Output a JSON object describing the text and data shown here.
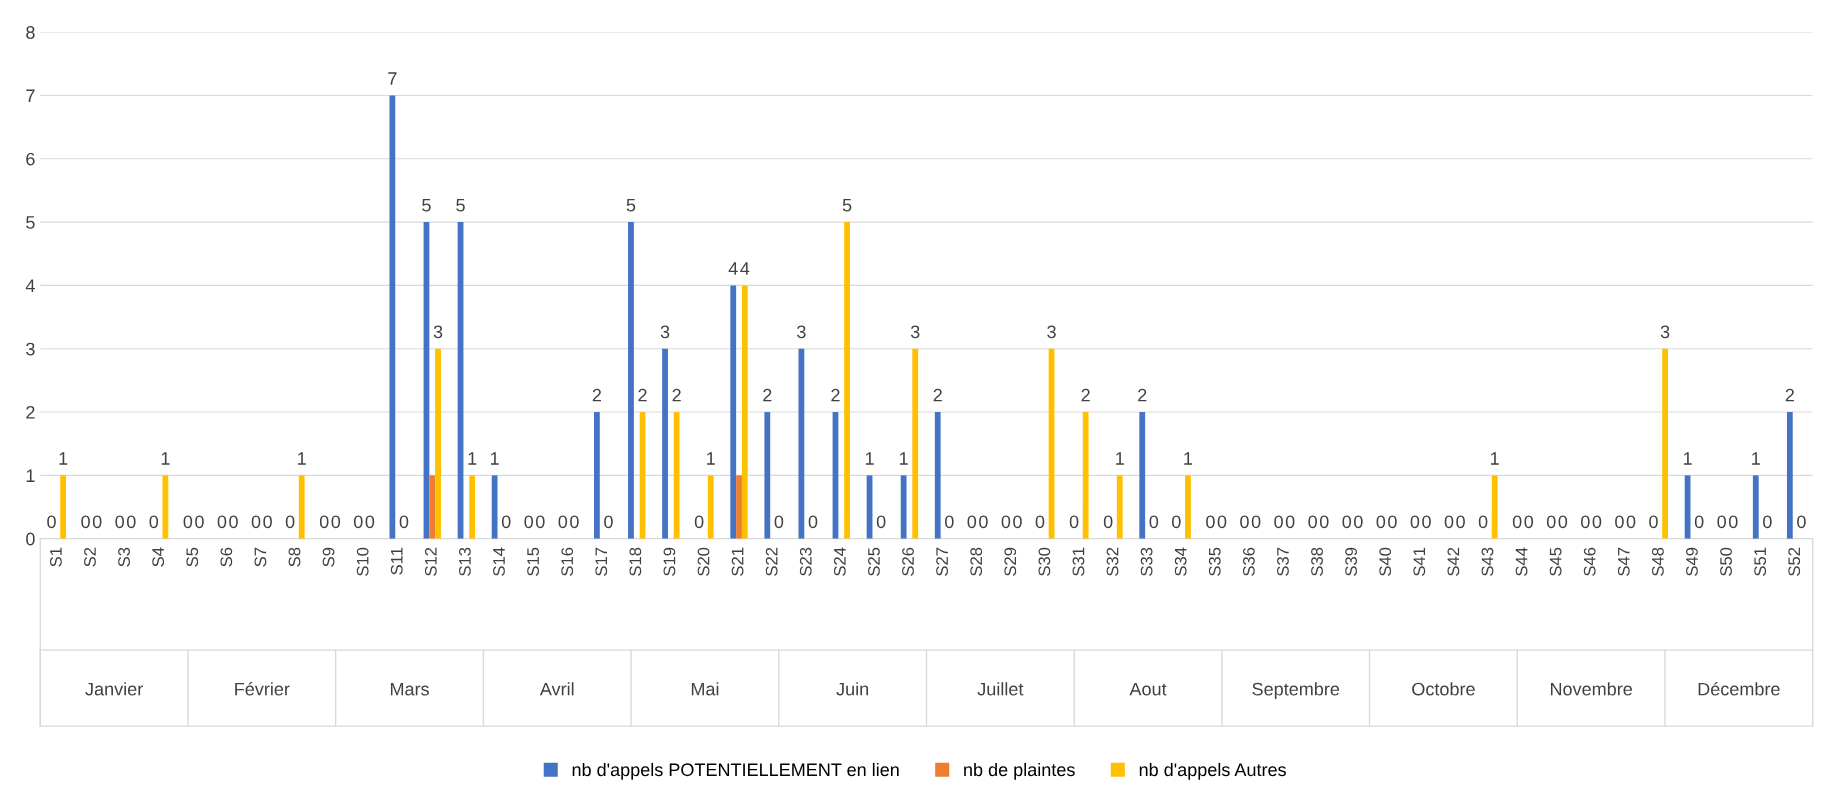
{
  "chart_data": {
    "type": "bar",
    "categories": [
      "S1",
      "S2",
      "S3",
      "S4",
      "S5",
      "S6",
      "S7",
      "S8",
      "S9",
      "S10",
      "S11",
      "S12",
      "S13",
      "S14",
      "S15",
      "S16",
      "S17",
      "S18",
      "S19",
      "S20",
      "S21",
      "S22",
      "S23",
      "S24",
      "S25",
      "S26",
      "S27",
      "S28",
      "S29",
      "S30",
      "S31",
      "S32",
      "S33",
      "S34",
      "S35",
      "S36",
      "S37",
      "S38",
      "S39",
      "S40",
      "S41",
      "S42",
      "S43",
      "S44",
      "S45",
      "S46",
      "S47",
      "S48",
      "S49",
      "S50",
      "S51",
      "S52"
    ],
    "series": [
      {
        "name": "nb d'appels POTENTIELLEMENT en lien",
        "color": "#4472c4",
        "values": [
          0,
          0,
          0,
          0,
          0,
          0,
          0,
          0,
          0,
          0,
          7,
          5,
          5,
          1,
          0,
          0,
          2,
          5,
          3,
          0,
          4,
          2,
          3,
          2,
          1,
          1,
          2,
          0,
          0,
          0,
          0,
          0,
          2,
          0,
          0,
          0,
          0,
          0,
          0,
          0,
          0,
          0,
          0,
          0,
          0,
          0,
          0,
          0,
          1,
          0,
          1,
          2
        ],
        "value_labels": [
          "0",
          "0",
          "0",
          "0",
          "0",
          "0",
          "0",
          "0",
          "0",
          "0",
          "7",
          "5",
          "5",
          "1",
          "0",
          "0",
          "2",
          "5",
          "3",
          "0",
          "4",
          "2",
          "3",
          "2",
          "1",
          "1",
          "2",
          "0",
          "0",
          "0",
          "0",
          "0",
          "2",
          "0",
          "0",
          "0",
          "0",
          "0",
          "0",
          "0",
          "0",
          "0",
          "0",
          "0",
          "0",
          "0",
          "0",
          "0",
          "1",
          "0",
          "1",
          "2"
        ]
      },
      {
        "name": "nb de plaintes",
        "color": "#ed7d31",
        "values": [
          0,
          0,
          0,
          0,
          0,
          0,
          0,
          0,
          0,
          0,
          0,
          1,
          0,
          0,
          0,
          0,
          0,
          0,
          0,
          0,
          1,
          0,
          0,
          0,
          0,
          0,
          0,
          0,
          0,
          0,
          0,
          0,
          0,
          0,
          0,
          0,
          0,
          0,
          0,
          0,
          0,
          0,
          0,
          0,
          0,
          0,
          0,
          0,
          0,
          0,
          0,
          0
        ]
      },
      {
        "name": "nb d'appels Autres",
        "color": "#ffc000",
        "values": [
          1,
          0,
          0,
          1,
          0,
          0,
          0,
          1,
          0,
          0,
          0,
          3,
          1,
          0,
          0,
          0,
          0,
          2,
          2,
          1,
          4,
          0,
          0,
          5,
          0,
          3,
          0,
          0,
          0,
          3,
          2,
          1,
          0,
          1,
          0,
          0,
          0,
          0,
          0,
          0,
          0,
          0,
          1,
          0,
          0,
          0,
          0,
          3,
          0,
          0,
          0,
          0
        ],
        "value_labels": [
          "1",
          "0",
          "0",
          "1",
          "0",
          "0",
          "0",
          "1",
          "0",
          "0",
          "0",
          "3",
          "1",
          "0",
          "0",
          "0",
          "0",
          "2",
          "2",
          "1",
          "4",
          "0",
          "0",
          "5",
          "0",
          "3",
          "0",
          "0",
          "0",
          "3",
          "2",
          "1",
          "0",
          "1",
          "0",
          "0",
          "0",
          "0",
          "0",
          "0",
          "0",
          "0",
          "1",
          "0",
          "0",
          "0",
          "0",
          "3",
          "0",
          "0",
          "0",
          "0"
        ]
      }
    ],
    "ylim": [
      0,
      8
    ],
    "yticks": [
      0,
      1,
      2,
      3,
      4,
      5,
      6,
      7,
      8
    ],
    "grid": "y",
    "legend": "bottom",
    "annotations": [
      "Janvier",
      "Février",
      "Mars",
      "Avril",
      "Mai",
      "Juin",
      "Juillet",
      "Aout",
      "Septembre",
      "Octobre",
      "Novembre",
      "Décembre"
    ]
  }
}
